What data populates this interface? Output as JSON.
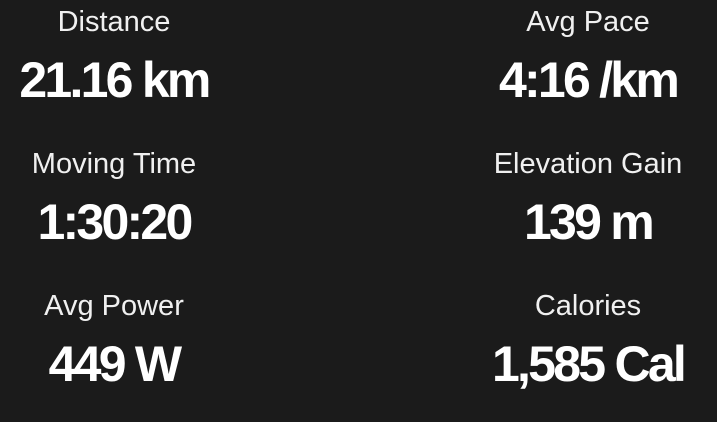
{
  "screen": {
    "name": "activity-stats-summary"
  },
  "colors": {
    "background": "#1b1b1b",
    "label_text": "#f0f0f0",
    "value_text": "#ffffff"
  },
  "stats": [
    {
      "id": "distance",
      "label": "Distance",
      "value": "21.16 km"
    },
    {
      "id": "avg-pace",
      "label": "Avg Pace",
      "value": "4:16 /km"
    },
    {
      "id": "moving-time",
      "label": "Moving Time",
      "value": "1:30:20"
    },
    {
      "id": "elevation-gain",
      "label": "Elevation Gain",
      "value": "139 m"
    },
    {
      "id": "avg-power",
      "label": "Avg Power",
      "value": "449 W"
    },
    {
      "id": "calories",
      "label": "Calories",
      "value": "1,585 Cal"
    }
  ]
}
